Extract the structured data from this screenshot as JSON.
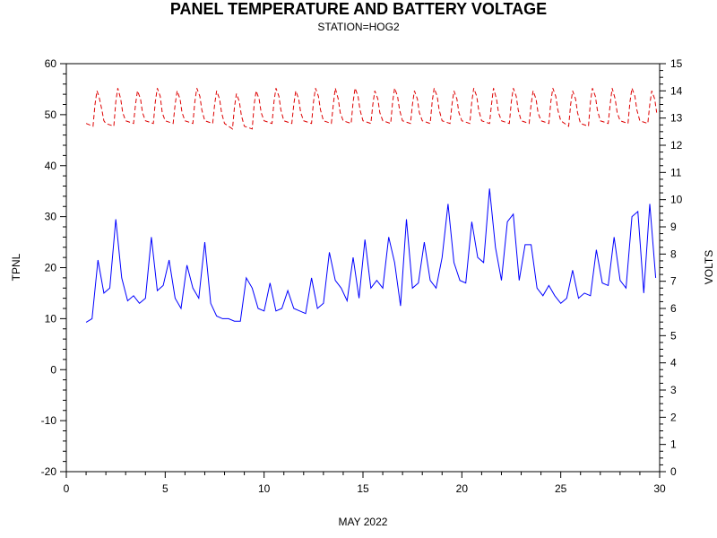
{
  "chart_data": {
    "type": "line",
    "title": "PANEL TEMPERATURE AND BATTERY VOLTAGE",
    "subtitle": "STATION=HOG2",
    "xlabel": "MAY 2022",
    "ylabel_left": "TPNL",
    "ylabel_right": "VOLTS",
    "xlim": [
      0,
      30
    ],
    "ylim_left": [
      -20,
      60
    ],
    "ylim_right": [
      0,
      15
    ],
    "x_ticks": [
      "0",
      "5",
      "10",
      "15",
      "20",
      "25",
      "30"
    ],
    "y_ticks_left": [
      "-20",
      "-10",
      "0",
      "10",
      "20",
      "30",
      "40",
      "50",
      "60"
    ],
    "y_ticks_right": [
      "0",
      "1",
      "2",
      "3",
      "4",
      "5",
      "6",
      "7",
      "8",
      "9",
      "10",
      "11",
      "12",
      "13",
      "14",
      "15"
    ],
    "series": [
      {
        "axis": "left",
        "color": "#0000ff",
        "style": "solid",
        "x": [
          1.0,
          1.3,
          1.6,
          1.9,
          2.2,
          2.5,
          2.8,
          3.1,
          3.4,
          3.7,
          4.0,
          4.3,
          4.6,
          4.9,
          5.2,
          5.5,
          5.8,
          6.1,
          6.4,
          6.7,
          7.0,
          7.3,
          7.6,
          7.9,
          8.2,
          8.5,
          8.8,
          9.1,
          9.4,
          9.7,
          10.0,
          10.3,
          10.6,
          10.9,
          11.2,
          11.5,
          11.8,
          12.1,
          12.4,
          12.7,
          13.0,
          13.3,
          13.6,
          13.9,
          14.2,
          14.5,
          14.8,
          15.1,
          15.4,
          15.7,
          16.0,
          16.3,
          16.6,
          16.9,
          17.2,
          17.5,
          17.8,
          18.1,
          18.4,
          18.7,
          19.0,
          19.3,
          19.6,
          19.9,
          20.2,
          20.5,
          20.8,
          21.1,
          21.4,
          21.7,
          22.0,
          22.3,
          22.6,
          22.9,
          23.2,
          23.5,
          23.8,
          24.1,
          24.4,
          24.7,
          25.0,
          25.3,
          25.6,
          25.9,
          26.2,
          26.5,
          26.8,
          27.1,
          27.4,
          27.7,
          28.0,
          28.3,
          28.6,
          28.9,
          29.2,
          29.5,
          29.8
        ],
        "y": [
          9.3,
          10.0,
          21.5,
          15.0,
          16.0,
          29.5,
          18.0,
          13.5,
          14.5,
          13.0,
          14.0,
          26.0,
          15.5,
          16.5,
          21.5,
          14.0,
          12.0,
          20.5,
          16.0,
          14.0,
          25.0,
          13.0,
          10.5,
          10.0,
          10.0,
          9.5,
          9.5,
          18.0,
          16.0,
          12.0,
          11.5,
          17.0,
          11.5,
          12.0,
          15.5,
          12.0,
          11.5,
          11.0,
          18.0,
          12.0,
          13.0,
          23.0,
          17.5,
          16.0,
          13.5,
          22.0,
          14.0,
          25.5,
          16.0,
          17.5,
          16.0,
          26.0,
          21.0,
          12.5,
          29.5,
          16.0,
          17.0,
          25.0,
          17.5,
          16.0,
          22.0,
          32.5,
          21.0,
          17.5,
          17.0,
          29.0,
          22.0,
          21.0,
          35.5,
          24.0,
          17.5,
          29.0,
          30.5,
          17.5,
          24.5,
          24.5,
          16.0,
          14.5,
          16.5,
          14.5,
          13.0,
          14.0,
          19.5,
          14.0,
          15.0,
          14.5,
          23.5,
          17.0,
          16.5,
          26.0,
          17.5,
          16.0,
          30.0,
          31.0,
          15.0,
          32.5,
          18.0
        ]
      },
      {
        "axis": "right",
        "color": "#dd0000",
        "style": "dashed",
        "x": [
          1.0,
          1.35,
          1.45,
          1.55,
          1.65,
          1.8,
          1.9,
          2.0,
          2.4,
          2.5,
          2.6,
          2.75,
          2.85,
          3.0,
          3.4,
          3.5,
          3.6,
          3.75,
          3.85,
          4.0,
          4.4,
          4.5,
          4.6,
          4.75,
          4.85,
          5.0,
          5.4,
          5.5,
          5.6,
          5.75,
          5.85,
          6.0,
          6.4,
          6.5,
          6.6,
          6.75,
          6.85,
          7.0,
          7.4,
          7.5,
          7.6,
          7.75,
          7.85,
          8.0,
          8.4,
          8.5,
          8.6,
          8.75,
          8.85,
          9.0,
          9.4,
          9.5,
          9.6,
          9.75,
          9.85,
          10.0,
          10.4,
          10.5,
          10.6,
          10.75,
          10.85,
          11.0,
          11.4,
          11.5,
          11.6,
          11.75,
          11.85,
          12.0,
          12.4,
          12.5,
          12.6,
          12.75,
          12.85,
          13.0,
          13.4,
          13.5,
          13.6,
          13.75,
          13.85,
          14.0,
          14.4,
          14.5,
          14.6,
          14.75,
          14.85,
          15.0,
          15.4,
          15.5,
          15.6,
          15.75,
          15.85,
          16.0,
          16.4,
          16.5,
          16.6,
          16.75,
          16.85,
          17.0,
          17.4,
          17.5,
          17.6,
          17.75,
          17.85,
          18.0,
          18.4,
          18.5,
          18.6,
          18.75,
          18.85,
          19.0,
          19.4,
          19.5,
          19.6,
          19.75,
          19.85,
          20.0,
          20.4,
          20.5,
          20.6,
          20.75,
          20.85,
          21.0,
          21.4,
          21.5,
          21.6,
          21.75,
          21.85,
          22.0,
          22.4,
          22.5,
          22.6,
          22.75,
          22.85,
          23.0,
          23.4,
          23.5,
          23.6,
          23.75,
          23.85,
          24.0,
          24.4,
          24.5,
          24.6,
          24.75,
          24.85,
          25.0,
          25.4,
          25.5,
          25.6,
          25.75,
          25.85,
          26.0,
          26.4,
          26.5,
          26.6,
          26.75,
          26.85,
          27.0,
          27.4,
          27.5,
          27.6,
          27.75,
          27.85,
          28.0,
          28.4,
          28.5,
          28.6,
          28.75,
          28.85,
          29.0,
          29.4,
          29.5,
          29.6,
          29.75,
          29.85
        ],
        "y": [
          12.8,
          12.7,
          13.5,
          14.0,
          13.8,
          13.3,
          12.9,
          12.8,
          12.7,
          13.6,
          14.1,
          13.7,
          13.2,
          12.9,
          12.8,
          13.5,
          14.0,
          13.7,
          13.2,
          12.9,
          12.8,
          13.6,
          14.1,
          13.8,
          13.2,
          12.9,
          12.8,
          13.5,
          14.0,
          13.7,
          13.2,
          12.9,
          12.8,
          13.6,
          14.1,
          13.8,
          13.3,
          12.9,
          12.8,
          13.5,
          14.0,
          13.7,
          13.2,
          12.8,
          12.6,
          13.4,
          13.9,
          13.6,
          13.1,
          12.7,
          12.6,
          13.5,
          14.0,
          13.7,
          13.2,
          12.9,
          12.8,
          13.6,
          14.1,
          13.8,
          13.3,
          12.9,
          12.8,
          13.5,
          14.0,
          13.7,
          13.2,
          12.9,
          12.8,
          13.6,
          14.1,
          13.8,
          13.3,
          12.9,
          12.8,
          13.5,
          14.1,
          13.7,
          13.2,
          12.9,
          12.8,
          13.6,
          14.1,
          13.8,
          13.3,
          12.9,
          12.8,
          13.5,
          14.0,
          13.7,
          13.2,
          12.9,
          12.8,
          13.6,
          14.1,
          13.8,
          13.3,
          12.9,
          12.8,
          13.5,
          14.0,
          13.7,
          13.2,
          12.9,
          12.8,
          13.6,
          14.1,
          13.8,
          13.3,
          12.9,
          12.8,
          13.5,
          14.0,
          13.7,
          13.2,
          12.9,
          12.8,
          13.6,
          14.1,
          13.8,
          13.3,
          12.9,
          12.8,
          13.5,
          14.1,
          13.7,
          13.2,
          12.9,
          12.8,
          13.6,
          14.1,
          13.8,
          13.3,
          12.9,
          12.8,
          13.5,
          14.0,
          13.7,
          13.2,
          12.9,
          12.8,
          13.6,
          14.1,
          13.8,
          13.3,
          12.9,
          12.7,
          13.5,
          14.0,
          13.7,
          13.2,
          12.8,
          12.7,
          13.6,
          14.1,
          13.8,
          13.3,
          12.9,
          12.8,
          13.5,
          14.1,
          13.7,
          13.2,
          12.9,
          12.8,
          13.6,
          14.1,
          13.8,
          13.3,
          12.9,
          12.8,
          13.5,
          14.0,
          13.7,
          13.2
        ]
      }
    ]
  }
}
